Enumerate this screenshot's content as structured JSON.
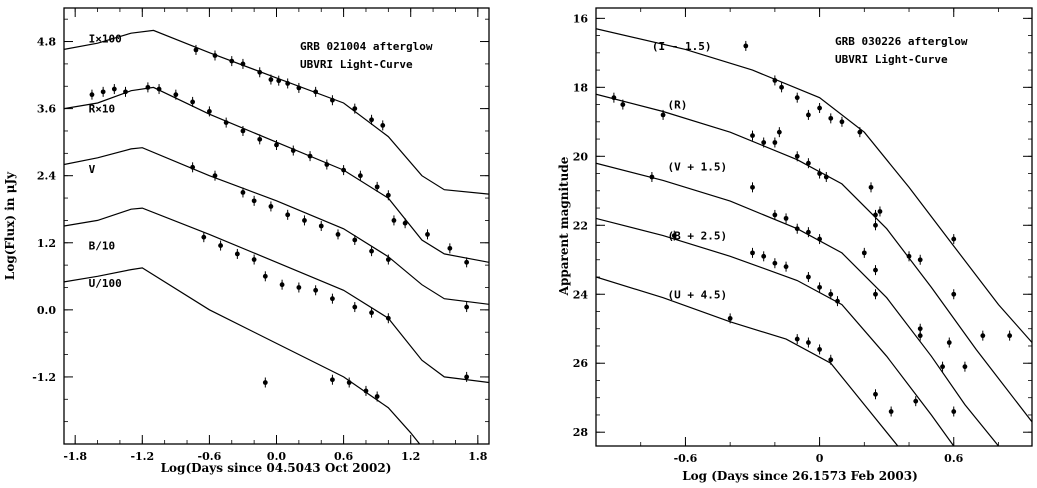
{
  "chart_data": [
    {
      "type": "line",
      "title": "GRB 021004 afterglow",
      "subtitle": "UBVRI Light-Curve",
      "xlabel": "Log(Days since 04.5043 Oct 2002)",
      "ylabel": "Log(Flux) in μJy",
      "xlim": [
        -1.9,
        1.9
      ],
      "ylim": [
        -2.4,
        5.4
      ],
      "y_inverted": false,
      "xticks": [
        -1.8,
        -1.2,
        -0.6,
        0.0,
        0.6,
        1.2,
        1.8
      ],
      "xtick_labels": [
        "-1.8",
        "-1.2",
        "-0.6",
        "0.0",
        "0.6",
        "1.2",
        "1.8"
      ],
      "yticks": [
        4.8,
        3.6,
        2.4,
        1.2,
        0.0,
        -1.2
      ],
      "ytick_labels": [
        "4.8",
        "3.6",
        "2.4",
        "1.2",
        "0.0",
        "-1.2"
      ],
      "series": [
        {
          "name": "I×100",
          "label_at": [
            -1.68,
            4.85
          ],
          "model": [
            [
              -1.9,
              4.66
            ],
            [
              -1.6,
              4.77
            ],
            [
              -1.3,
              4.95
            ],
            [
              -1.1,
              5.0
            ],
            [
              -0.6,
              4.6
            ],
            [
              0.0,
              4.15
            ],
            [
              0.6,
              3.7
            ],
            [
              1.0,
              3.1
            ],
            [
              1.3,
              2.4
            ],
            [
              1.5,
              2.15
            ],
            [
              1.9,
              2.07
            ]
          ],
          "points": [
            [
              -0.72,
              4.65
            ],
            [
              -0.55,
              4.55
            ],
            [
              -0.4,
              4.45
            ],
            [
              -0.3,
              4.4
            ],
            [
              -0.15,
              4.25
            ],
            [
              -0.05,
              4.12
            ],
            [
              0.02,
              4.1
            ],
            [
              0.1,
              4.05
            ],
            [
              0.2,
              3.97
            ],
            [
              0.35,
              3.9
            ],
            [
              0.5,
              3.75
            ],
            [
              0.7,
              3.6
            ],
            [
              0.85,
              3.4
            ],
            [
              0.95,
              3.3
            ]
          ]
        },
        {
          "name": "R×10",
          "label_at": [
            -1.68,
            3.6
          ],
          "model": [
            [
              -1.9,
              3.6
            ],
            [
              -1.6,
              3.7
            ],
            [
              -1.3,
              3.92
            ],
            [
              -1.1,
              3.98
            ],
            [
              -0.6,
              3.5
            ],
            [
              0.0,
              3.0
            ],
            [
              0.6,
              2.5
            ],
            [
              1.0,
              2.0
            ],
            [
              1.3,
              1.25
            ],
            [
              1.5,
              1.0
            ],
            [
              1.9,
              0.85
            ]
          ],
          "points": [
            [
              -1.65,
              3.85
            ],
            [
              -1.55,
              3.9
            ],
            [
              -1.45,
              3.95
            ],
            [
              -1.35,
              3.9
            ],
            [
              -1.15,
              3.98
            ],
            [
              -1.05,
              3.95
            ],
            [
              -0.9,
              3.85
            ],
            [
              -0.75,
              3.72
            ],
            [
              -0.6,
              3.55
            ],
            [
              -0.45,
              3.35
            ],
            [
              -0.3,
              3.2
            ],
            [
              -0.15,
              3.05
            ],
            [
              0.0,
              2.95
            ],
            [
              0.15,
              2.85
            ],
            [
              0.3,
              2.75
            ],
            [
              0.45,
              2.6
            ],
            [
              0.6,
              2.5
            ],
            [
              0.75,
              2.4
            ],
            [
              0.9,
              2.2
            ],
            [
              1.0,
              2.05
            ],
            [
              1.05,
              1.6
            ],
            [
              1.15,
              1.55
            ],
            [
              1.35,
              1.35
            ],
            [
              1.55,
              1.1
            ],
            [
              1.7,
              0.85
            ]
          ]
        },
        {
          "name": "V",
          "label_at": [
            -1.68,
            2.52
          ],
          "model": [
            [
              -1.9,
              2.6
            ],
            [
              -1.6,
              2.72
            ],
            [
              -1.3,
              2.88
            ],
            [
              -1.2,
              2.9
            ],
            [
              -0.6,
              2.4
            ],
            [
              0.0,
              1.95
            ],
            [
              0.6,
              1.45
            ],
            [
              1.0,
              0.95
            ],
            [
              1.3,
              0.45
            ],
            [
              1.5,
              0.2
            ],
            [
              1.9,
              0.1
            ]
          ],
          "points": [
            [
              -0.75,
              2.55
            ],
            [
              -0.55,
              2.4
            ],
            [
              -0.3,
              2.1
            ],
            [
              -0.2,
              1.95
            ],
            [
              -0.05,
              1.85
            ],
            [
              0.1,
              1.7
            ],
            [
              0.25,
              1.6
            ],
            [
              0.4,
              1.5
            ],
            [
              0.55,
              1.35
            ],
            [
              0.7,
              1.25
            ],
            [
              0.85,
              1.05
            ],
            [
              1.0,
              0.9
            ],
            [
              1.7,
              0.05
            ]
          ]
        },
        {
          "name": "B/10",
          "label_at": [
            -1.68,
            1.15
          ],
          "model": [
            [
              -1.9,
              1.5
            ],
            [
              -1.6,
              1.6
            ],
            [
              -1.3,
              1.8
            ],
            [
              -1.2,
              1.82
            ],
            [
              -0.6,
              1.35
            ],
            [
              0.0,
              0.85
            ],
            [
              0.6,
              0.35
            ],
            [
              1.0,
              -0.15
            ],
            [
              1.3,
              -0.9
            ],
            [
              1.5,
              -1.2
            ],
            [
              1.9,
              -1.3
            ]
          ],
          "points": [
            [
              -0.65,
              1.3
            ],
            [
              -0.5,
              1.15
            ],
            [
              -0.35,
              1.0
            ],
            [
              -0.2,
              0.9
            ],
            [
              -0.1,
              0.6
            ],
            [
              0.05,
              0.45
            ],
            [
              0.2,
              0.4
            ],
            [
              0.35,
              0.35
            ],
            [
              0.5,
              0.2
            ],
            [
              0.7,
              0.05
            ],
            [
              0.85,
              -0.05
            ],
            [
              1.0,
              -0.15
            ],
            [
              1.7,
              -1.2
            ]
          ]
        },
        {
          "name": "U/100",
          "label_at": [
            -1.68,
            0.48
          ],
          "model": [
            [
              -1.9,
              0.5
            ],
            [
              -1.6,
              0.6
            ],
            [
              -1.3,
              0.72
            ],
            [
              -1.2,
              0.75
            ],
            [
              -0.6,
              0.0
            ],
            [
              0.0,
              -0.6
            ],
            [
              0.6,
              -1.2
            ],
            [
              1.0,
              -1.75
            ],
            [
              1.2,
              -2.2
            ],
            [
              1.32,
              -2.5
            ]
          ],
          "points": [
            [
              -0.1,
              -1.3
            ],
            [
              0.5,
              -1.25
            ],
            [
              0.65,
              -1.3
            ],
            [
              0.8,
              -1.45
            ],
            [
              0.9,
              -1.55
            ]
          ]
        }
      ]
    },
    {
      "type": "line",
      "title": "GRB 030226 afterglow",
      "subtitle": "UBVRI Light-Curve",
      "xlabel": "Log (Days since 26.1573 Feb 2003)",
      "ylabel": "Apparent magnitude",
      "xlim": [
        -1.0,
        0.95
      ],
      "ylim": [
        28.4,
        15.7
      ],
      "y_inverted": true,
      "xticks": [
        -0.6,
        0.0,
        0.6
      ],
      "xtick_labels": [
        "-0.6",
        "0",
        "0.6"
      ],
      "yticks": [
        16,
        18,
        20,
        22,
        24,
        26,
        28
      ],
      "ytick_labels": [
        "16",
        "18",
        "20",
        "22",
        "24",
        "26",
        "28"
      ],
      "series": [
        {
          "name": "(I - 1.5)",
          "label_at": [
            -0.75,
            16.8
          ],
          "model": [
            [
              -1.0,
              16.3
            ],
            [
              -0.6,
              16.9
            ],
            [
              -0.3,
              17.5
            ],
            [
              0.0,
              18.3
            ],
            [
              0.2,
              19.3
            ],
            [
              0.4,
              20.9
            ],
            [
              0.6,
              22.6
            ],
            [
              0.8,
              24.3
            ],
            [
              0.95,
              25.4
            ]
          ],
          "points": [
            [
              -0.33,
              16.8
            ],
            [
              -0.2,
              17.8
            ],
            [
              -0.17,
              18.0
            ],
            [
              -0.1,
              18.3
            ],
            [
              -0.05,
              18.8
            ],
            [
              0.0,
              18.6
            ],
            [
              0.05,
              18.9
            ],
            [
              0.1,
              19.0
            ],
            [
              0.18,
              19.3
            ],
            [
              0.23,
              20.9
            ],
            [
              0.25,
              22.0
            ],
            [
              0.4,
              22.9
            ],
            [
              0.6,
              22.4
            ],
            [
              0.85,
              25.2
            ]
          ]
        },
        {
          "name": "(R)",
          "label_at": [
            -0.68,
            18.5
          ],
          "model": [
            [
              -1.0,
              18.2
            ],
            [
              -0.7,
              18.7
            ],
            [
              -0.4,
              19.3
            ],
            [
              -0.1,
              20.1
            ],
            [
              0.1,
              20.8
            ],
            [
              0.3,
              22.1
            ],
            [
              0.5,
              23.8
            ],
            [
              0.7,
              25.6
            ],
            [
              0.95,
              27.7
            ]
          ],
          "points": [
            [
              -0.92,
              18.3
            ],
            [
              -0.88,
              18.5
            ],
            [
              -0.7,
              18.8
            ],
            [
              -0.3,
              19.4
            ],
            [
              -0.25,
              19.6
            ],
            [
              -0.2,
              19.6
            ],
            [
              -0.18,
              19.3
            ],
            [
              -0.1,
              20.0
            ],
            [
              -0.05,
              20.2
            ],
            [
              0.0,
              20.5
            ],
            [
              0.03,
              20.6
            ],
            [
              0.25,
              21.7
            ],
            [
              0.27,
              21.6
            ],
            [
              0.45,
              23.0
            ],
            [
              0.6,
              24.0
            ],
            [
              0.73,
              25.2
            ]
          ]
        },
        {
          "name": "(V + 1.5)",
          "label_at": [
            -0.68,
            20.3
          ],
          "model": [
            [
              -1.0,
              20.2
            ],
            [
              -0.7,
              20.7
            ],
            [
              -0.4,
              21.3
            ],
            [
              -0.1,
              22.1
            ],
            [
              0.1,
              22.8
            ],
            [
              0.3,
              24.1
            ],
            [
              0.5,
              25.8
            ],
            [
              0.65,
              27.2
            ],
            [
              0.8,
              28.4
            ]
          ],
          "points": [
            [
              -0.75,
              20.6
            ],
            [
              -0.3,
              20.9
            ],
            [
              -0.2,
              21.7
            ],
            [
              -0.15,
              21.8
            ],
            [
              -0.1,
              22.1
            ],
            [
              -0.05,
              22.2
            ],
            [
              0.0,
              22.4
            ],
            [
              0.2,
              22.8
            ],
            [
              0.25,
              23.3
            ],
            [
              0.45,
              25.0
            ],
            [
              0.58,
              25.4
            ],
            [
              0.65,
              26.1
            ]
          ]
        },
        {
          "name": "(B + 2.5)",
          "label_at": [
            -0.68,
            22.3
          ],
          "model": [
            [
              -1.0,
              21.8
            ],
            [
              -0.7,
              22.3
            ],
            [
              -0.4,
              22.9
            ],
            [
              -0.1,
              23.6
            ],
            [
              0.1,
              24.3
            ],
            [
              0.3,
              25.8
            ],
            [
              0.5,
              27.5
            ],
            [
              0.6,
              28.4
            ]
          ],
          "points": [
            [
              -0.65,
              22.3
            ],
            [
              -0.3,
              22.8
            ],
            [
              -0.25,
              22.9
            ],
            [
              -0.2,
              23.1
            ],
            [
              -0.15,
              23.2
            ],
            [
              -0.05,
              23.5
            ],
            [
              0.0,
              23.8
            ],
            [
              0.05,
              24.0
            ],
            [
              0.08,
              24.2
            ],
            [
              0.25,
              24.0
            ],
            [
              0.45,
              25.2
            ],
            [
              0.55,
              26.1
            ],
            [
              0.6,
              27.4
            ]
          ]
        },
        {
          "name": "(U + 4.5)",
          "label_at": [
            -0.68,
            24.0
          ],
          "model": [
            [
              -1.0,
              23.5
            ],
            [
              -0.7,
              24.1
            ],
            [
              -0.4,
              24.8
            ],
            [
              -0.15,
              25.3
            ],
            [
              0.05,
              26.0
            ],
            [
              0.2,
              27.2
            ],
            [
              0.35,
              28.4
            ]
          ],
          "points": [
            [
              -0.4,
              24.7
            ],
            [
              -0.1,
              25.3
            ],
            [
              -0.05,
              25.4
            ],
            [
              0.0,
              25.6
            ],
            [
              0.05,
              25.9
            ],
            [
              0.25,
              26.9
            ],
            [
              0.32,
              27.4
            ],
            [
              0.43,
              27.1
            ]
          ]
        }
      ]
    }
  ]
}
